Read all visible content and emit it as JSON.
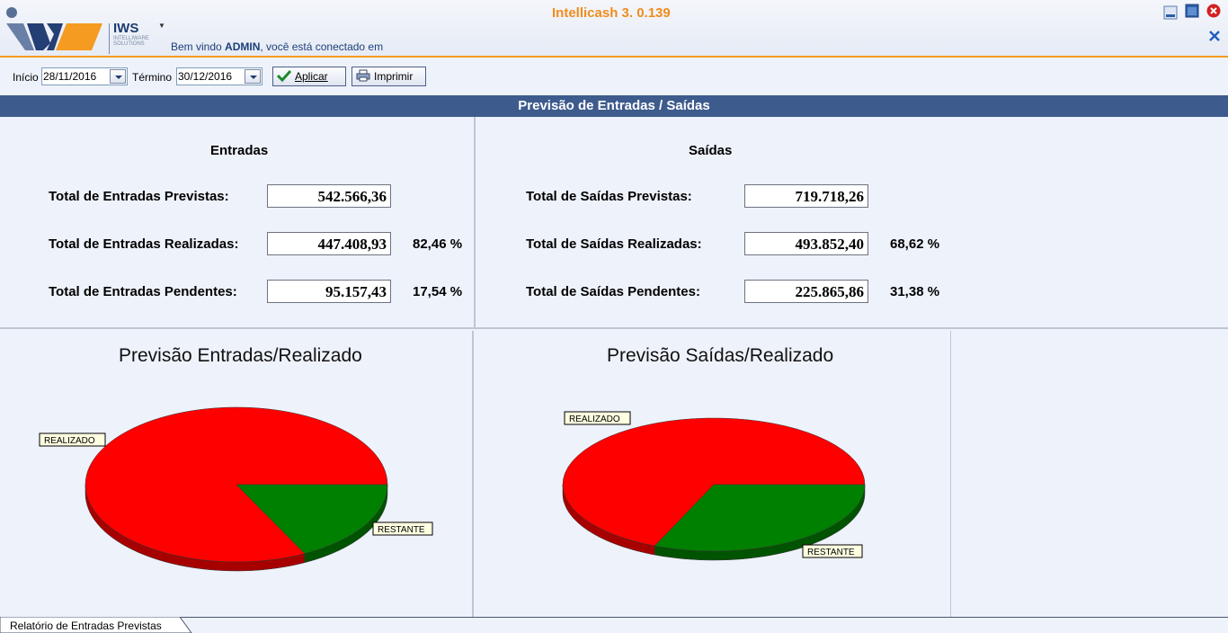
{
  "app": {
    "title": "Intellicash 3. 0.139",
    "logo_brand": "IWS",
    "logo_sub": "INTELLIWARE SOLUTIONS",
    "welcome_prefix": "Bem vindo ",
    "welcome_user": "ADMIN",
    "welcome_suffix": ", você está conectado em"
  },
  "toolbar": {
    "inicio_label": "Início",
    "inicio_value": "28/11/2016",
    "termino_label": "Término",
    "termino_value": "30/12/2016",
    "aplicar_label": "Aplicar",
    "imprimir_label": "Imprimir"
  },
  "banner": {
    "title": "Previsão de Entradas / Saídas"
  },
  "entradas": {
    "title": "Entradas",
    "previstas_label": "Total de Entradas Previstas:",
    "previstas_value": "542.566,36",
    "realizadas_label": "Total de Entradas Realizadas:",
    "realizadas_value": "447.408,93",
    "realizadas_pct": "82,46 %",
    "pendentes_label": "Total de Entradas Pendentes:",
    "pendentes_value": "95.157,43",
    "pendentes_pct": "17,54 %"
  },
  "saidas": {
    "title": "Saídas",
    "previstas_label": "Total de Saídas Previstas:",
    "previstas_value": "719.718,26",
    "realizadas_label": "Total de Saídas Realizadas:",
    "realizadas_value": "493.852,40",
    "realizadas_pct": "68,62 %",
    "pendentes_label": "Total de Saídas Pendentes:",
    "pendentes_value": "225.865,86",
    "pendentes_pct": "31,38 %"
  },
  "chart_data": [
    {
      "type": "pie",
      "title": "Previsão Entradas/Realizado",
      "categories": [
        "REALIZADO",
        "RESTANTE"
      ],
      "values": [
        82.46,
        17.54
      ],
      "colors": [
        "#ff0000",
        "#008000"
      ]
    },
    {
      "type": "pie",
      "title": "Previsão Saídas/Realizado",
      "categories": [
        "REALIZADO",
        "RESTANTE"
      ],
      "values": [
        68.62,
        31.38
      ],
      "colors": [
        "#ff0000",
        "#008000"
      ]
    }
  ],
  "bottom_tab": {
    "label": "Relatório de Entradas Previstas"
  },
  "colors": {
    "accent": "#f08c1c",
    "banner": "#3d5b8c",
    "realizado": "#ff0000",
    "restante": "#008000"
  }
}
